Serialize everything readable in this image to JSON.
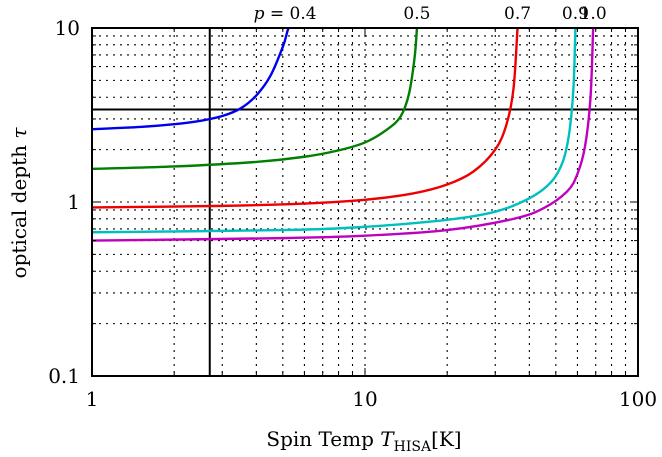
{
  "chart_data": {
    "type": "line",
    "title": "",
    "xscale": "log",
    "yscale": "log",
    "xlim": [
      1,
      100
    ],
    "ylim": [
      0.1,
      10
    ],
    "x_ticks": [
      {
        "value": 1,
        "label": "1"
      },
      {
        "value": 10,
        "label": "10"
      },
      {
        "value": 100,
        "label": "100"
      }
    ],
    "y_ticks": [
      {
        "value": 0.1,
        "label": "0.1"
      },
      {
        "value": 1,
        "label": "1"
      },
      {
        "value": 10,
        "label": "10"
      }
    ],
    "xlabel_parts": {
      "main": "Spin Temp ",
      "var": "T",
      "sub": "HISA",
      "unit": "[K]"
    },
    "ylabel_parts": {
      "main": "optical depth ",
      "var": "τ"
    },
    "grid": "dotted, major and minor",
    "reference_lines": {
      "x": 2.7,
      "y": 3.4
    },
    "series": [
      {
        "name": "p = 0.4",
        "color": "#0000ee",
        "x": [
          1,
          1.5,
          2,
          2.5,
          3,
          3.5,
          4,
          4.5,
          5,
          5.2,
          5.25
        ],
        "y": [
          2.62,
          2.7,
          2.8,
          2.93,
          3.12,
          3.45,
          4.1,
          5.3,
          7.8,
          9.6,
          10
        ]
      },
      {
        "name": "0.5",
        "color": "#007f00",
        "x": [
          1,
          2,
          4,
          6,
          8,
          10,
          12,
          13.5,
          14.5,
          15.2,
          15.5
        ],
        "y": [
          1.55,
          1.6,
          1.7,
          1.82,
          1.98,
          2.2,
          2.6,
          3.1,
          4.2,
          6.8,
          10
        ]
      },
      {
        "name": "0.7",
        "color": "#ee0000",
        "x": [
          1,
          3,
          6,
          10,
          15,
          20,
          25,
          30,
          33,
          35,
          36.2
        ],
        "y": [
          0.93,
          0.95,
          0.98,
          1.03,
          1.12,
          1.26,
          1.5,
          2.0,
          2.8,
          4.5,
          10
        ]
      },
      {
        "name": "0.9",
        "color": "#00bfbf",
        "x": [
          1,
          5,
          10,
          20,
          30,
          40,
          48,
          53,
          56,
          58,
          59
        ],
        "y": [
          0.67,
          0.69,
          0.72,
          0.79,
          0.88,
          1.05,
          1.3,
          1.7,
          2.5,
          4.5,
          10
        ]
      },
      {
        "name": "1.0",
        "color": "#bf00bf",
        "x": [
          1,
          5,
          10,
          20,
          35,
          45,
          55,
          60,
          64,
          67,
          68.5
        ],
        "y": [
          0.6,
          0.62,
          0.64,
          0.69,
          0.8,
          0.92,
          1.15,
          1.45,
          2.1,
          4.0,
          10
        ]
      }
    ]
  }
}
